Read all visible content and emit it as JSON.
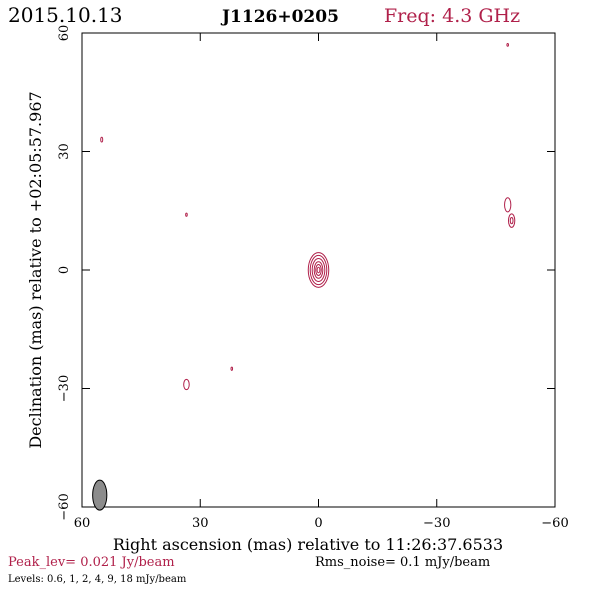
{
  "header": {
    "date": "2015.10.13",
    "source": "J1126+0205",
    "freq": "Freq: 4.3 GHz"
  },
  "footer": {
    "peak": "Peak_lev=  0.021 Jy/beam",
    "rms": "Rms_noise=   0.1 mJy/beam",
    "levels": "Levels: 0.6,    1,    2,    4,    9,   18 mJy/beam"
  },
  "colors": {
    "contour": "#b0204a",
    "beam_fill": "#8c8c8c",
    "axes": "#000000"
  },
  "chart_data": {
    "type": "contour",
    "title": "",
    "xlabel": "Right ascension (mas) relative to 11:26:37.6533",
    "ylabel": "Declination (mas) relative to +02:05:57.967",
    "xlim": [
      60,
      -60
    ],
    "ylim": [
      -60,
      60
    ],
    "xticks": [
      60,
      30,
      0,
      -30,
      -60
    ],
    "yticks": [
      -60,
      -30,
      0,
      30,
      60
    ],
    "xtick_labels": [
      "60",
      "30",
      "0",
      "−30",
      "−60"
    ],
    "ytick_labels": [
      "−60",
      "−30",
      "0",
      "30",
      "60"
    ],
    "contour_levels_mJy": [
      0.6,
      1,
      2,
      4,
      9,
      18
    ],
    "peak_Jy_per_beam": 0.021,
    "rms_mJy_per_beam": 0.1,
    "beam": {
      "x": 55.5,
      "y": -57,
      "major": 3.8,
      "minor": 1.8,
      "pa_deg": 0
    },
    "components": [
      {
        "name": "core",
        "x": 0,
        "y": 0,
        "contours": [
          {
            "a": 2.6,
            "b": 4.4
          },
          {
            "a": 2.1,
            "b": 3.7
          },
          {
            "a": 1.6,
            "b": 2.9
          },
          {
            "a": 1.1,
            "b": 2.1
          },
          {
            "a": 0.7,
            "b": 1.4
          },
          {
            "a": 0.35,
            "b": 0.7
          }
        ]
      },
      {
        "name": "east-knot",
        "x": -48,
        "y": 16.5,
        "contours": [
          {
            "a": 0.8,
            "b": 1.8
          }
        ]
      },
      {
        "name": "east-knot-2",
        "x": -49,
        "y": 12.5,
        "contours": [
          {
            "a": 0.8,
            "b": 1.7
          },
          {
            "a": 0.35,
            "b": 0.8
          }
        ]
      },
      {
        "name": "blob-sw",
        "x": 33.5,
        "y": -29,
        "contours": [
          {
            "a": 0.7,
            "b": 1.3
          }
        ]
      },
      {
        "name": "dot-nw",
        "x": 55,
        "y": 33,
        "contours": [
          {
            "a": 0.25,
            "b": 0.6
          }
        ]
      },
      {
        "name": "dot-mid",
        "x": 33.5,
        "y": 14,
        "contours": [
          {
            "a": 0.2,
            "b": 0.4
          }
        ]
      },
      {
        "name": "dot-south",
        "x": 22,
        "y": -25,
        "contours": [
          {
            "a": 0.2,
            "b": 0.4
          }
        ]
      },
      {
        "name": "dot-ne",
        "x": -48,
        "y": 57,
        "contours": [
          {
            "a": 0.2,
            "b": 0.35
          }
        ]
      }
    ]
  }
}
